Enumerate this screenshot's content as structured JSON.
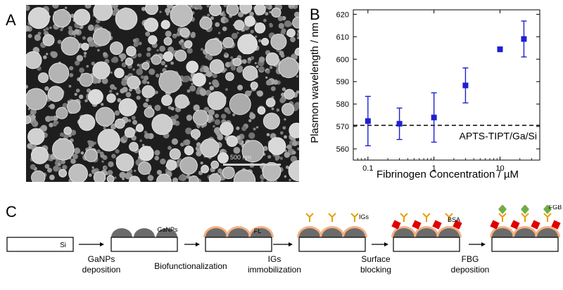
{
  "panels": {
    "a": {
      "letter": "A",
      "scale_bar": "500 nm"
    },
    "b": {
      "letter": "B"
    },
    "c": {
      "letter": "C"
    }
  },
  "chart_data": {
    "type": "scatter",
    "xscale": "log",
    "xlim": [
      0.06,
      40
    ],
    "ylim": [
      555,
      622
    ],
    "yticks": [
      560,
      570,
      580,
      590,
      600,
      610,
      620
    ],
    "xticks": [
      0.1,
      1,
      10
    ],
    "xticklabels": [
      "0.1",
      "1",
      "10"
    ],
    "xlabel": "Fibrinogen Concentration / µM",
    "ylabel": "Plasmon wavelength / nm",
    "marker_color": "#1f1fd0",
    "points": [
      {
        "x": 0.1,
        "y": 572.4,
        "err": 11.0
      },
      {
        "x": 0.3,
        "y": 571.2,
        "err": 7.0
      },
      {
        "x": 1.0,
        "y": 574.0,
        "err": 11.0
      },
      {
        "x": 3.0,
        "y": 588.3,
        "err": 7.8
      },
      {
        "x": 10.0,
        "y": 604.4,
        "err": 1.0
      },
      {
        "x": 23.0,
        "y": 609.0,
        "err": 8.0
      }
    ],
    "reference_line": {
      "y": 570.5,
      "style": "dashed",
      "label": "APTS-TIPT/Ga/Si"
    }
  },
  "schematic": {
    "stages": [
      {
        "substrate_label": "Si"
      },
      {
        "substrate_label": "",
        "layer_label": "GaNPs"
      },
      {
        "substrate_label": "",
        "layer_label": "FL"
      },
      {
        "substrate_label": "",
        "layer_label": "IGs"
      },
      {
        "substrate_label": "",
        "layer_label": "BSA"
      },
      {
        "substrate_label": "",
        "layer_label": "FGB"
      }
    ],
    "steps": [
      {
        "line1": "GaNPs",
        "line2": "deposition"
      },
      {
        "line1": "Biofunctionalization",
        "line2": ""
      },
      {
        "line1": "IGs",
        "line2": "immobilization"
      },
      {
        "line1": "Surface",
        "line2": "blocking"
      },
      {
        "line1": "FBG",
        "line2": "deposition"
      }
    ]
  }
}
